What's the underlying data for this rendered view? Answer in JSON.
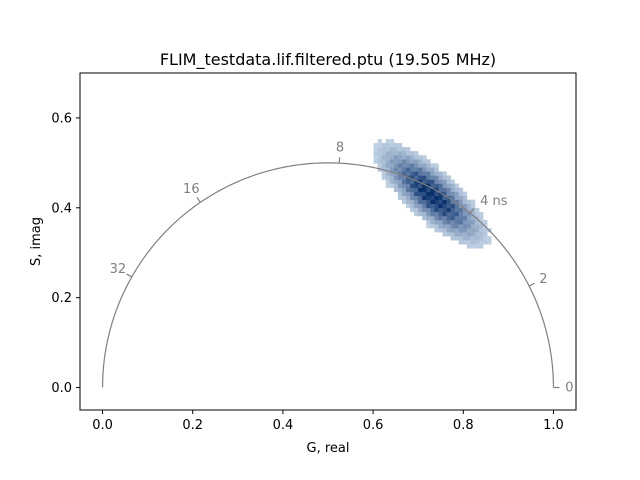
{
  "chart_data": {
    "type": "heatmap",
    "title": "FLIM_testdata.lif.filtered.ptu (19.505 MHz)",
    "xlabel": "G, real",
    "ylabel": "S, imag",
    "xlim": [
      -0.05,
      1.05
    ],
    "ylim": [
      -0.05,
      0.7
    ],
    "xticks": [
      0.0,
      0.2,
      0.4,
      0.6,
      0.8,
      1.0
    ],
    "xtick_labels": [
      "0.0",
      "0.2",
      "0.4",
      "0.6",
      "0.8",
      "1.0"
    ],
    "yticks": [
      0.0,
      0.2,
      0.4,
      0.6
    ],
    "ytick_labels": [
      "0.0",
      "0.2",
      "0.4",
      "0.6"
    ],
    "grid": false,
    "colormap": "Blues",
    "universal_semicircle": {
      "color": "#808080",
      "lifetime_ticks": [
        {
          "label": "0",
          "g": 1.0,
          "s": 0.0
        },
        {
          "label": "2",
          "g": 0.946,
          "s": 0.226
        },
        {
          "label": "4 ns",
          "g": 0.815,
          "s": 0.388
        },
        {
          "label": "8",
          "g": 0.525,
          "s": 0.499
        },
        {
          "label": "16",
          "g": 0.217,
          "s": 0.412
        },
        {
          "label": "32",
          "g": 0.065,
          "s": 0.246
        }
      ]
    },
    "histogram": {
      "center": [
        0.725,
        0.425
      ],
      "major_axis_direction": [
        0.74,
        -0.67
      ],
      "sigma_major": 0.07,
      "sigma_minor": 0.024,
      "bin_size": 0.009,
      "peak_color": "#08306b",
      "light_color": "#deebf7"
    }
  }
}
